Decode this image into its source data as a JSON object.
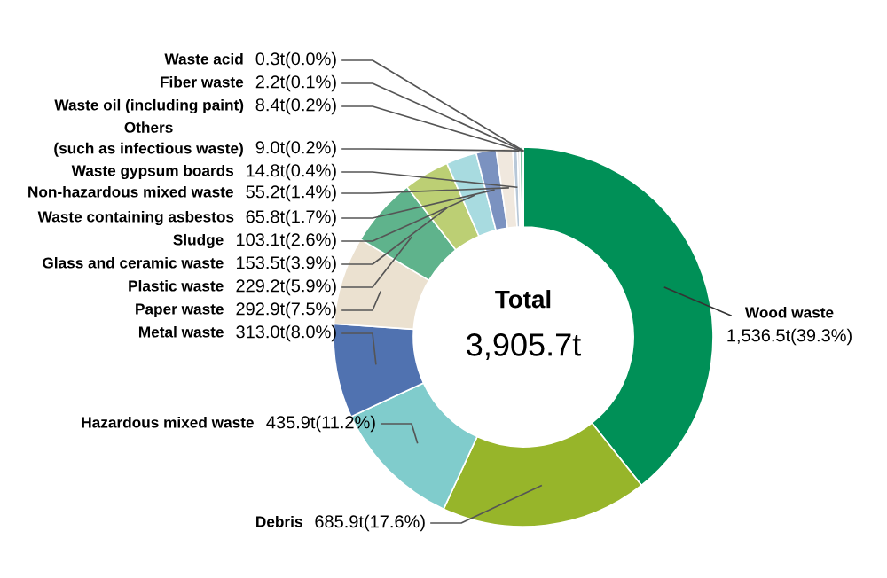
{
  "chart_data": {
    "type": "donut",
    "categories": [
      "Wood waste",
      "Debris",
      "Hazardous mixed waste",
      "Metal waste",
      "Paper waste",
      "Plastic waste",
      "Glass and ceramic waste",
      "Sludge",
      "Waste containing asbestos",
      "Non-hazardous mixed waste",
      "Waste gypsum boards",
      "Others\n(such as infectious waste)",
      "Waste oil (including paint)",
      "Fiber waste",
      "Waste acid"
    ],
    "values": [
      39.3,
      17.6,
      11.2,
      8.0,
      7.5,
      5.9,
      3.9,
      2.6,
      1.7,
      1.4,
      0.4,
      0.2,
      0.2,
      0.1,
      0.0
    ],
    "value_labels": [
      "1,536.5t(39.3%)",
      "685.9t(17.6%)",
      "435.9t(11.2%)",
      "313.0t(8.0%)",
      "292.9t(7.5%)",
      "229.2t(5.9%)",
      "153.5t(3.9%)",
      "103.1t(2.6%)",
      "65.8t(1.7%)",
      "55.2t(1.4%)",
      "14.8t(0.4%)",
      "9.0t(0.2%)",
      "8.4t(0.2%)",
      "2.2t(0.1%)",
      "0.3t(0.0%)"
    ],
    "colors": [
      "#009057",
      "#97b52a",
      "#80cccc",
      "#5072b0",
      "#ebe1d0",
      "#5fb38c",
      "#bccf74",
      "#a8dbe0",
      "#7b92c0",
      "#f0e8de",
      "#b8c8d8",
      "#d8d8d8",
      "#5fb38c",
      "#80cccc",
      "#5072b0"
    ],
    "annotations": [
      "Total",
      "3,905.7t"
    ]
  }
}
